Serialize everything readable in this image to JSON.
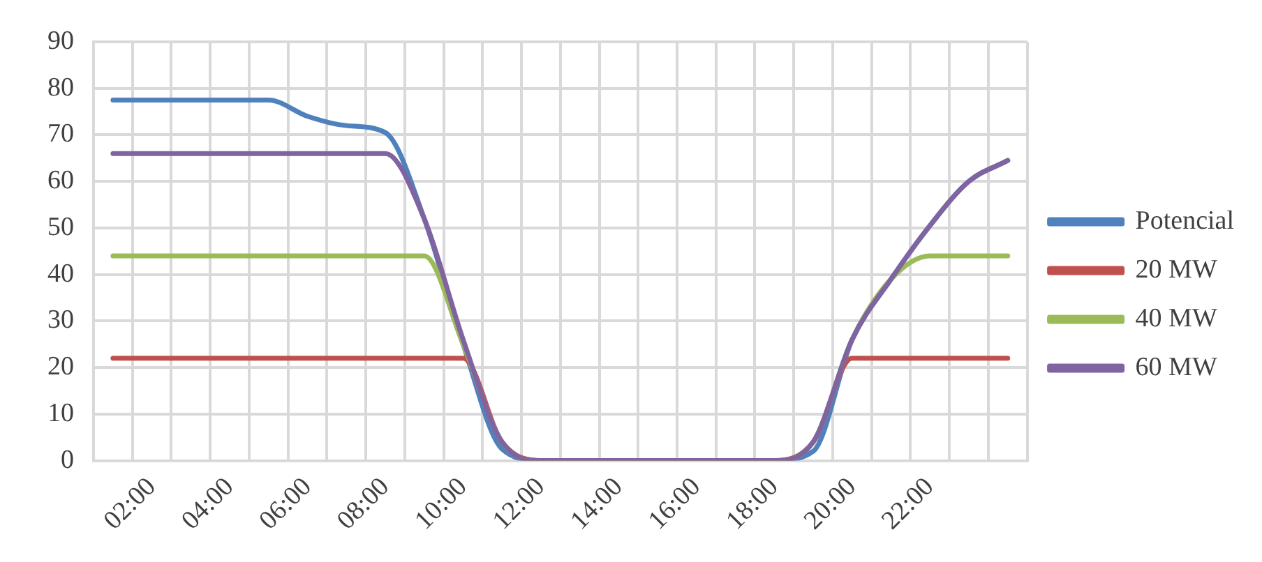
{
  "chart_data": {
    "type": "line",
    "categories": [
      null,
      "02:00",
      null,
      "04:00",
      null,
      "06:00",
      null,
      "08:00",
      null,
      "10:00",
      null,
      "12:00",
      null,
      "14:00",
      null,
      "16:00",
      null,
      "18:00",
      null,
      "20:00",
      null,
      "22:00",
      null,
      null
    ],
    "series": [
      {
        "name": "Potencial",
        "color": "#4f81bd",
        "values": [
          77.5,
          77.5,
          77.5,
          77.5,
          77.5,
          74,
          72,
          70.5,
          52,
          25,
          2.5,
          0,
          0,
          0,
          0,
          0,
          0,
          0,
          2,
          26,
          39,
          50.5,
          60,
          64.5
        ]
      },
      {
        "name": "20 MW",
        "color": "#c0504d",
        "values": [
          22,
          22,
          22,
          22,
          22,
          22,
          22,
          22,
          22,
          22,
          4,
          0,
          0,
          0,
          0,
          0,
          0,
          0,
          4,
          22,
          22,
          22,
          22,
          22
        ]
      },
      {
        "name": "40 MW",
        "color": "#9bbb59",
        "values": [
          44,
          44,
          44,
          44,
          44,
          44,
          44,
          44,
          44,
          25,
          4,
          0,
          0,
          0,
          0,
          0,
          0,
          0,
          4,
          26,
          39,
          44,
          44,
          44
        ]
      },
      {
        "name": "60 MW",
        "color": "#8064a2",
        "values": [
          66,
          66,
          66,
          66,
          66,
          66,
          66,
          66,
          52,
          26,
          4,
          0,
          0,
          0,
          0,
          0,
          0,
          0,
          4,
          26,
          39,
          50.5,
          60,
          64.5
        ]
      }
    ],
    "ylim": [
      0,
      90
    ],
    "yticks": [
      0,
      10,
      20,
      30,
      40,
      50,
      60,
      70,
      80,
      90
    ],
    "grid": true,
    "legend": "right",
    "marker": "none",
    "line_style": "solid"
  }
}
